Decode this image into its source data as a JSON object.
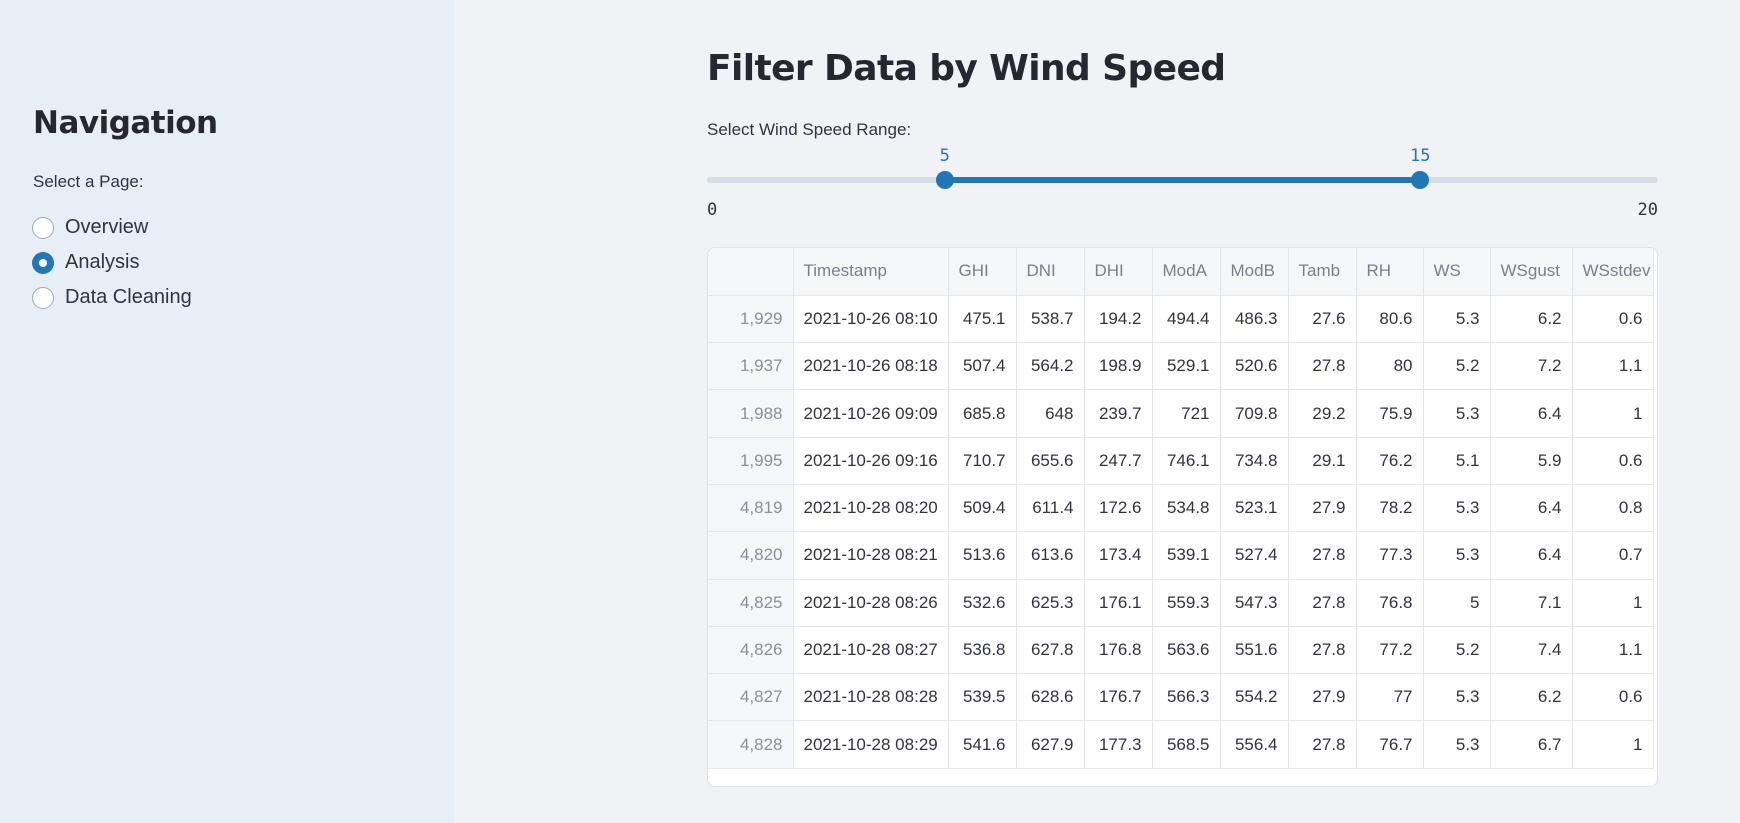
{
  "sidebar": {
    "title": "Navigation",
    "radio_label": "Select a Page:",
    "options": [
      "Overview",
      "Analysis",
      "Data Cleaning"
    ],
    "selected": "Analysis"
  },
  "main": {
    "title": "Filter Data by Wind Speed",
    "slider": {
      "label": "Select Wind Speed Range:",
      "min": 0,
      "max": 20,
      "low": 5,
      "high": 15,
      "min_label": "0",
      "max_label": "20",
      "low_label": "5",
      "high_label": "15"
    },
    "table": {
      "columns": [
        "",
        "Timestamp",
        "GHI",
        "DNI",
        "DHI",
        "ModA",
        "ModB",
        "Tamb",
        "RH",
        "WS",
        "WSgust",
        "WSstdev"
      ],
      "rows": [
        [
          "1,929",
          "2021-10-26 08:10",
          "475.1",
          "538.7",
          "194.2",
          "494.4",
          "486.3",
          "27.6",
          "80.6",
          "5.3",
          "6.2",
          "0.6"
        ],
        [
          "1,937",
          "2021-10-26 08:18",
          "507.4",
          "564.2",
          "198.9",
          "529.1",
          "520.6",
          "27.8",
          "80",
          "5.2",
          "7.2",
          "1.1"
        ],
        [
          "1,988",
          "2021-10-26 09:09",
          "685.8",
          "648",
          "239.7",
          "721",
          "709.8",
          "29.2",
          "75.9",
          "5.3",
          "6.4",
          "1"
        ],
        [
          "1,995",
          "2021-10-26 09:16",
          "710.7",
          "655.6",
          "247.7",
          "746.1",
          "734.8",
          "29.1",
          "76.2",
          "5.1",
          "5.9",
          "0.6"
        ],
        [
          "4,819",
          "2021-10-28 08:20",
          "509.4",
          "611.4",
          "172.6",
          "534.8",
          "523.1",
          "27.9",
          "78.2",
          "5.3",
          "6.4",
          "0.8"
        ],
        [
          "4,820",
          "2021-10-28 08:21",
          "513.6",
          "613.6",
          "173.4",
          "539.1",
          "527.4",
          "27.8",
          "77.3",
          "5.3",
          "6.4",
          "0.7"
        ],
        [
          "4,825",
          "2021-10-28 08:26",
          "532.6",
          "625.3",
          "176.1",
          "559.3",
          "547.3",
          "27.8",
          "76.8",
          "5",
          "7.1",
          "1"
        ],
        [
          "4,826",
          "2021-10-28 08:27",
          "536.8",
          "627.8",
          "176.8",
          "563.6",
          "551.6",
          "27.8",
          "77.2",
          "5.2",
          "7.4",
          "1.1"
        ],
        [
          "4,827",
          "2021-10-28 08:28",
          "539.5",
          "628.6",
          "176.7",
          "566.3",
          "554.2",
          "27.9",
          "77",
          "5.3",
          "6.2",
          "0.6"
        ],
        [
          "4,828",
          "2021-10-28 08:29",
          "541.6",
          "627.9",
          "177.3",
          "568.5",
          "556.4",
          "27.8",
          "76.7",
          "5.3",
          "6.7",
          "1"
        ]
      ]
    }
  },
  "colors": {
    "accent": "#2276b6",
    "sidebar_bg": "#e8eef5",
    "main_bg": "#f0f2f6"
  }
}
